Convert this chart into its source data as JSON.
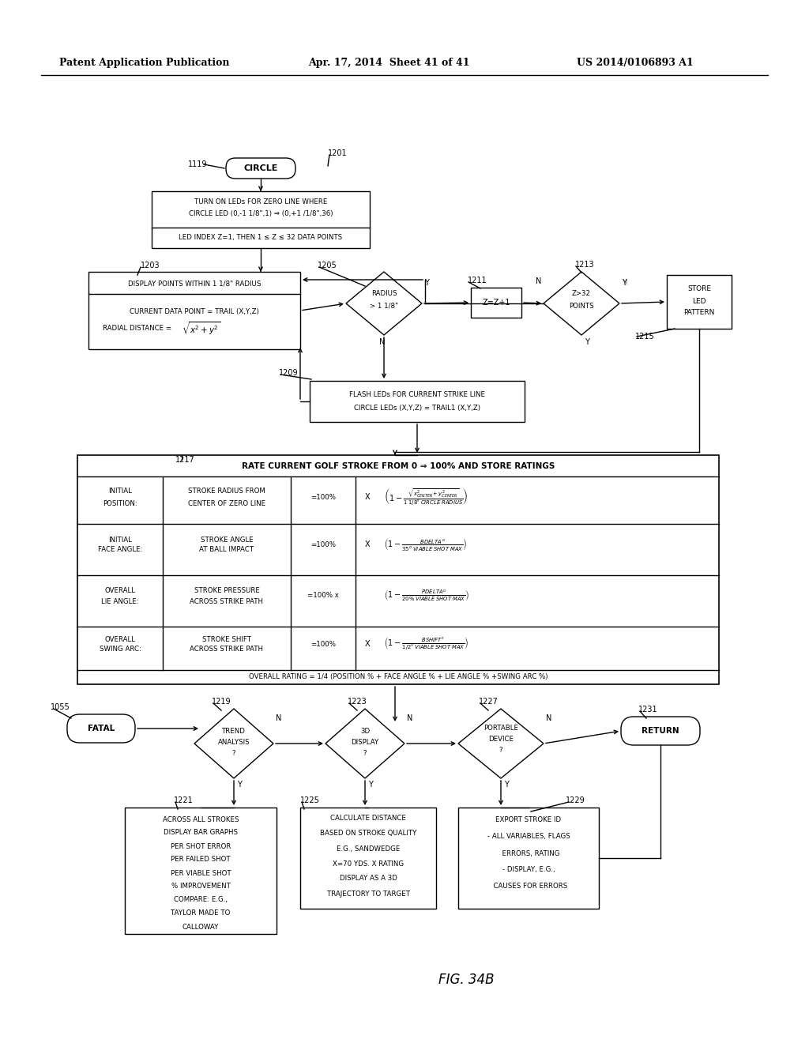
{
  "header_left": "Patent Application Publication",
  "header_mid": "Apr. 17, 2014  Sheet 41 of 41",
  "header_right": "US 2014/0106893 A1",
  "bg_color": "#ffffff",
  "fig_label": "FIG. 34B"
}
